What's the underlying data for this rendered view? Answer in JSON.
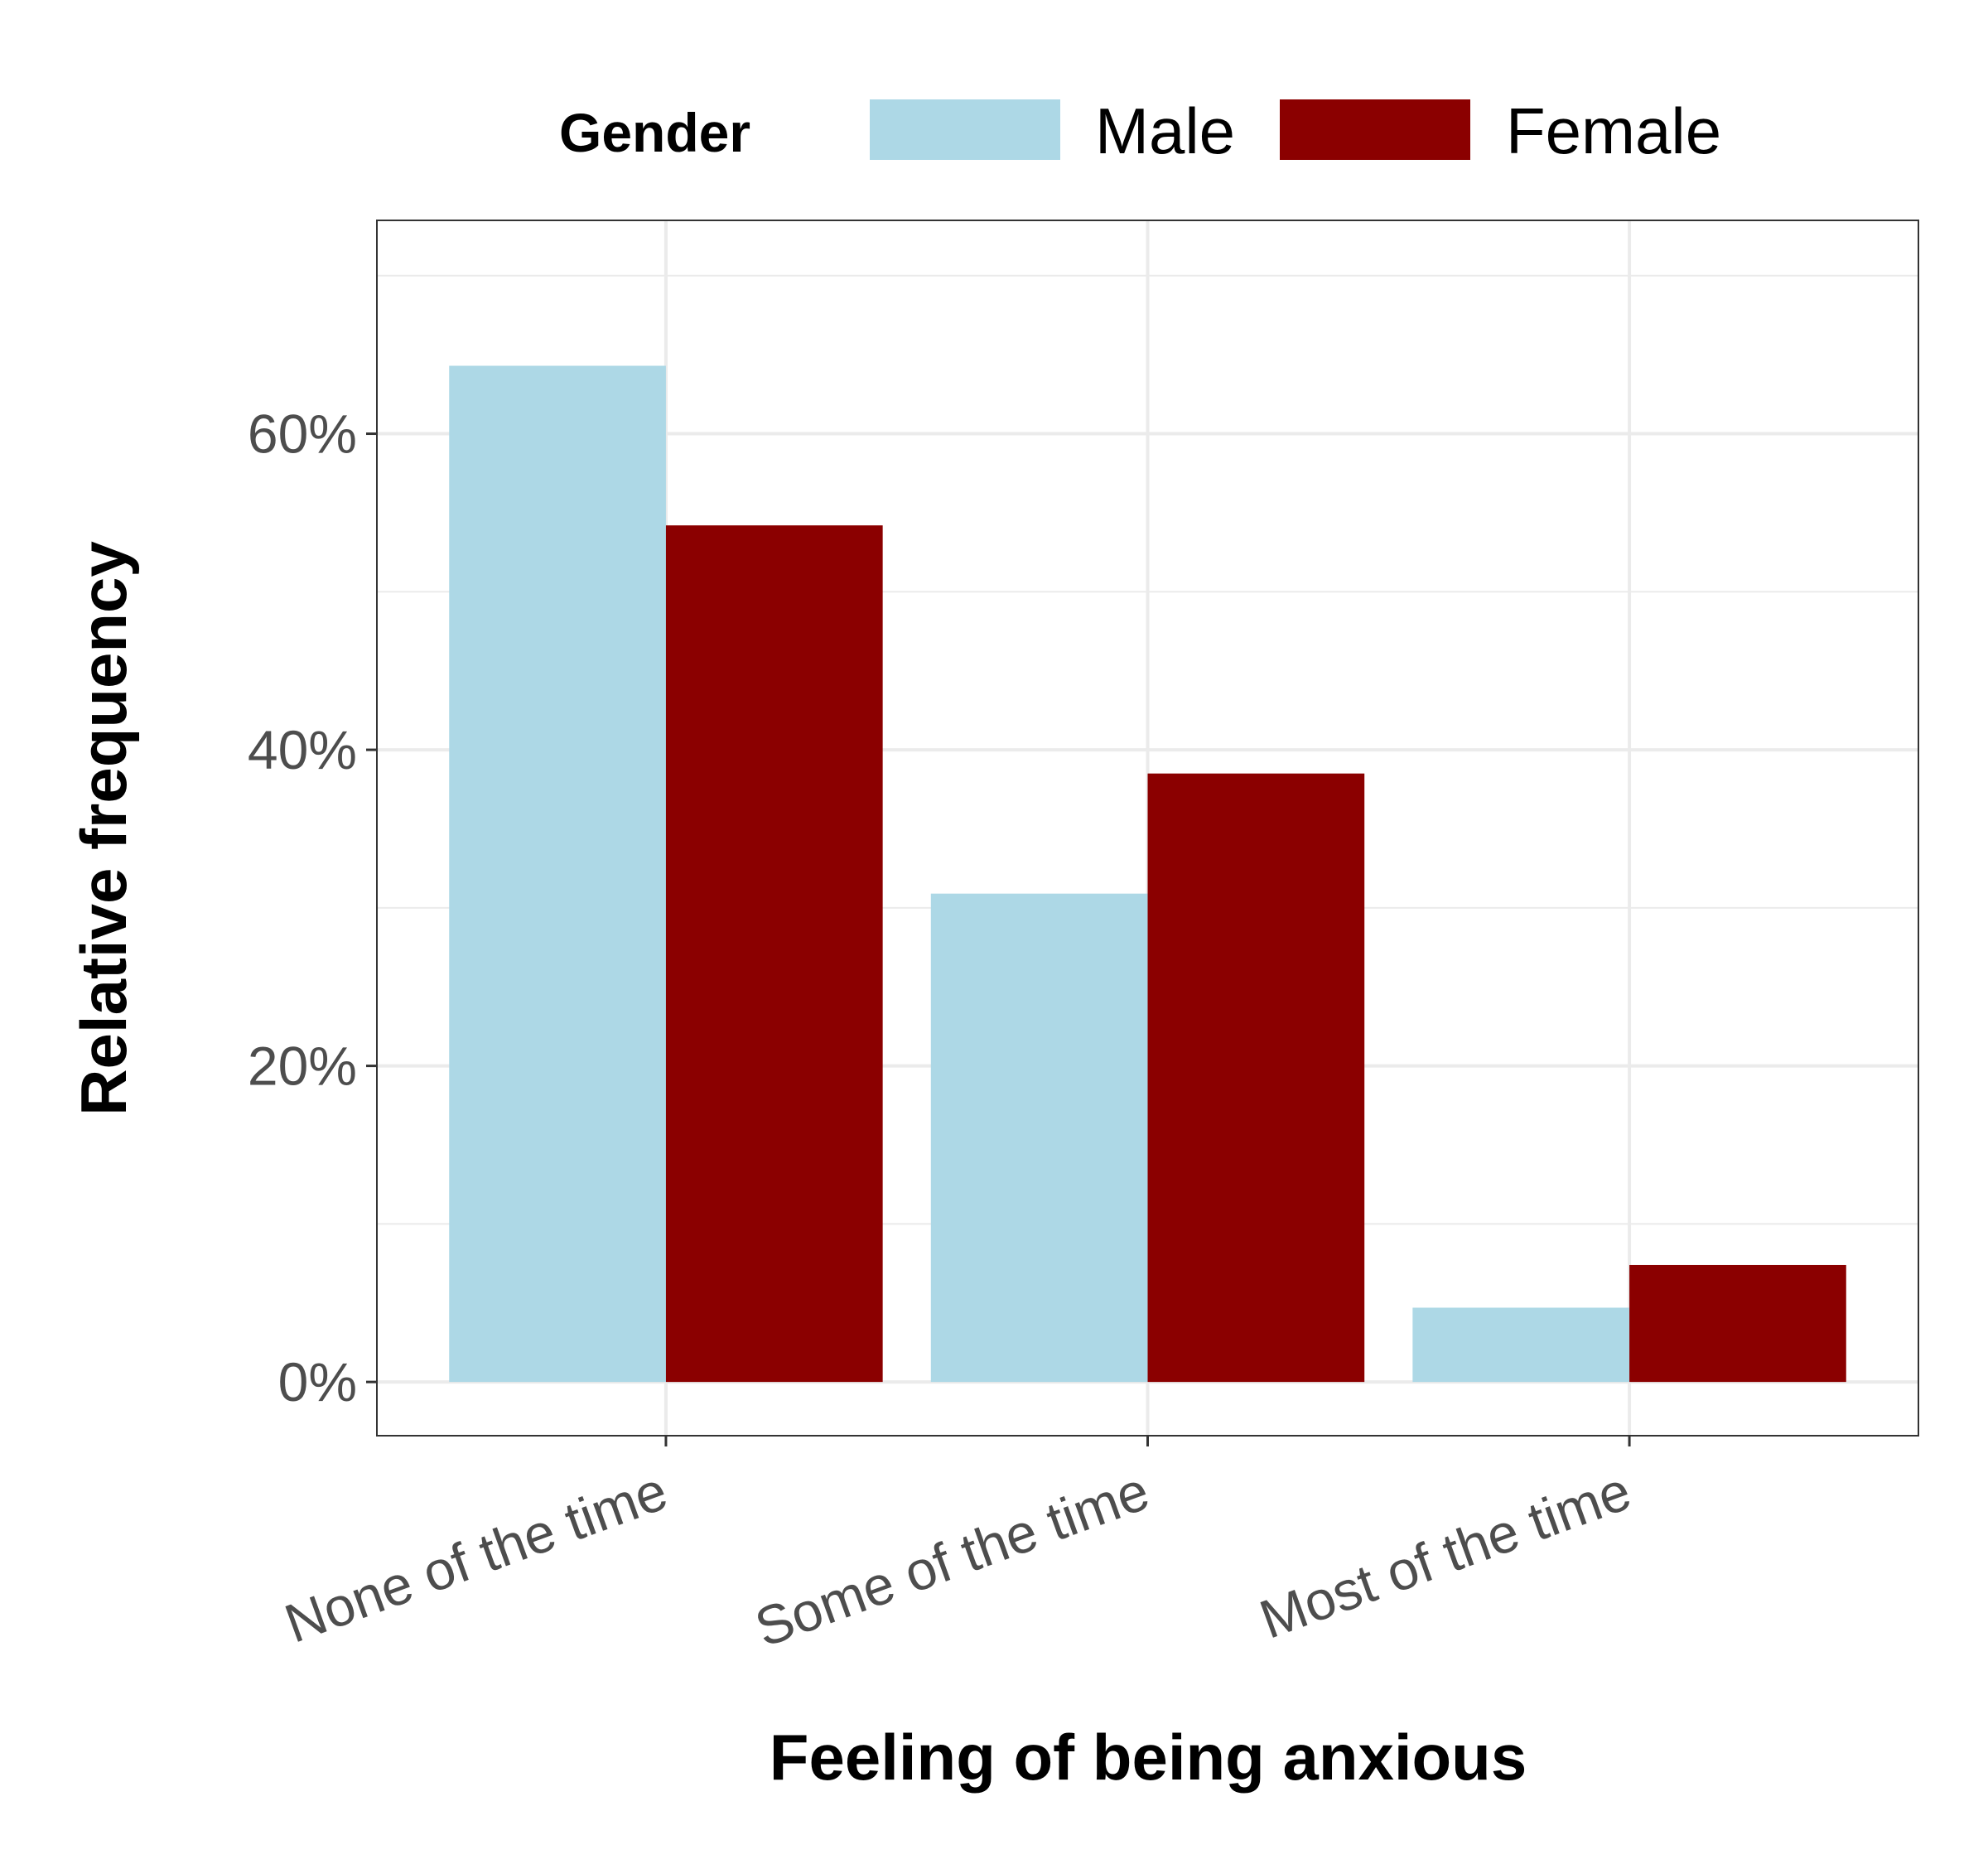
{
  "chart_data": {
    "type": "bar",
    "xlabel": "Feeling of being anxious",
    "ylabel": "Relative frequency",
    "categories": [
      "None of the time",
      "Some of the time",
      "Most of the time"
    ],
    "series": [
      {
        "name": "Male",
        "color": "#add8e6",
        "values": [
          64.3,
          30.9,
          4.7
        ]
      },
      {
        "name": "Female",
        "color": "#8b0000",
        "values": [
          54.2,
          38.5,
          7.4
        ]
      }
    ],
    "ylim": [
      -3.4,
      73.5
    ],
    "yticks": [
      0,
      20,
      40,
      60
    ],
    "ytick_labels": [
      "0%",
      "20%",
      "40%",
      "60%"
    ],
    "legend": {
      "title": "Gender",
      "position": "top"
    },
    "grid": true
  }
}
